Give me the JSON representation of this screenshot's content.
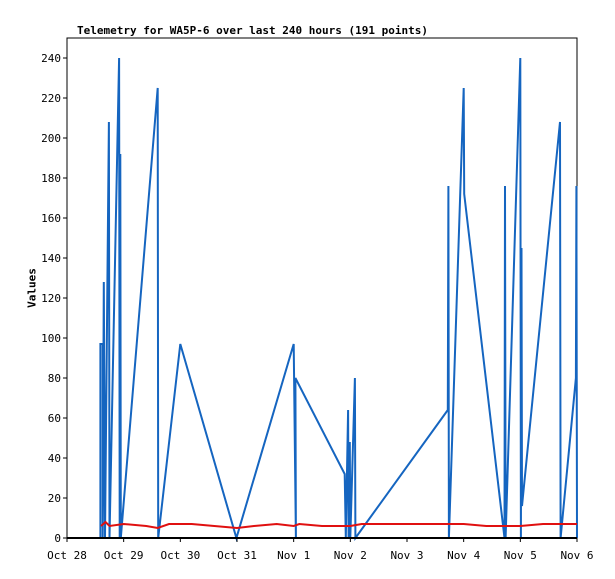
{
  "chart_data": {
    "type": "line",
    "title": "Telemetry for WA5P-6 over last 240 hours (191 points)",
    "ylabel": "Values",
    "xlabel": "",
    "ylim": [
      0,
      250
    ],
    "yticks": [
      0,
      20,
      40,
      60,
      80,
      100,
      120,
      140,
      160,
      180,
      200,
      220,
      240
    ],
    "xlim": [
      0,
      9
    ],
    "xticks": [
      {
        "v": 0,
        "label": "Oct 28"
      },
      {
        "v": 1,
        "label": "Oct 29"
      },
      {
        "v": 2,
        "label": "Oct 30"
      },
      {
        "v": 3,
        "label": "Oct 31"
      },
      {
        "v": 4,
        "label": "Nov 1"
      },
      {
        "v": 5,
        "label": "Nov 2"
      },
      {
        "v": 6,
        "label": "Nov 3"
      },
      {
        "v": 7,
        "label": "Nov 4"
      },
      {
        "v": 8,
        "label": "Nov 5"
      },
      {
        "v": 9,
        "label": "Nov 6"
      }
    ],
    "grid": false,
    "colors": {
      "blue": "#1565c0",
      "red": "#e01010",
      "black": "#000000"
    },
    "series": [
      {
        "color": "#1565c0",
        "points": [
          [
            0.59,
            0
          ],
          [
            0.59,
            97
          ],
          [
            0.63,
            97
          ],
          [
            0.63,
            0
          ],
          [
            0.65,
            128
          ],
          [
            0.67,
            0
          ],
          [
            0.74,
            208
          ],
          [
            0.75,
            0
          ],
          [
            0.92,
            240
          ],
          [
            0.93,
            0
          ],
          [
            0.94,
            192
          ],
          [
            0.95,
            0
          ],
          [
            1.6,
            225
          ],
          [
            1.61,
            0
          ],
          [
            2.0,
            97
          ],
          [
            2.99,
            0
          ],
          [
            4.0,
            97
          ],
          [
            4.04,
            0
          ],
          [
            4.03,
            80
          ],
          [
            4.9,
            32
          ],
          [
            4.92,
            0
          ],
          [
            4.96,
            64
          ],
          [
            4.97,
            0
          ],
          [
            4.99,
            48
          ],
          [
            5.0,
            0
          ],
          [
            5.08,
            80
          ],
          [
            5.09,
            0
          ],
          [
            6.72,
            64
          ],
          [
            6.73,
            176
          ],
          [
            6.74,
            0
          ],
          [
            7.0,
            225
          ],
          [
            7.01,
            172
          ],
          [
            7.72,
            0
          ],
          [
            7.73,
            176
          ],
          [
            7.74,
            0
          ],
          [
            8.0,
            240
          ],
          [
            8.01,
            0
          ],
          [
            8.02,
            145
          ],
          [
            8.03,
            16
          ],
          [
            8.7,
            208
          ],
          [
            8.71,
            0
          ],
          [
            8.98,
            80
          ],
          [
            8.99,
            176
          ],
          [
            9.0,
            0
          ]
        ]
      },
      {
        "color": "#e01010",
        "points": [
          [
            0.6,
            6
          ],
          [
            0.68,
            8
          ],
          [
            0.75,
            6
          ],
          [
            1.0,
            7
          ],
          [
            1.4,
            6
          ],
          [
            1.6,
            5
          ],
          [
            1.8,
            7
          ],
          [
            2.2,
            7
          ],
          [
            2.6,
            6
          ],
          [
            3.0,
            5
          ],
          [
            3.3,
            6
          ],
          [
            3.7,
            7
          ],
          [
            4.0,
            6
          ],
          [
            4.1,
            7
          ],
          [
            4.5,
            6
          ],
          [
            5.0,
            6
          ],
          [
            5.2,
            7
          ],
          [
            5.6,
            7
          ],
          [
            6.0,
            7
          ],
          [
            6.5,
            7
          ],
          [
            7.0,
            7
          ],
          [
            7.4,
            6
          ],
          [
            7.7,
            6
          ],
          [
            8.0,
            6
          ],
          [
            8.4,
            7
          ],
          [
            9.0,
            7
          ]
        ]
      },
      {
        "color": "#000000",
        "points": [
          [
            0.0,
            0
          ],
          [
            9.0,
            0
          ]
        ]
      }
    ]
  }
}
